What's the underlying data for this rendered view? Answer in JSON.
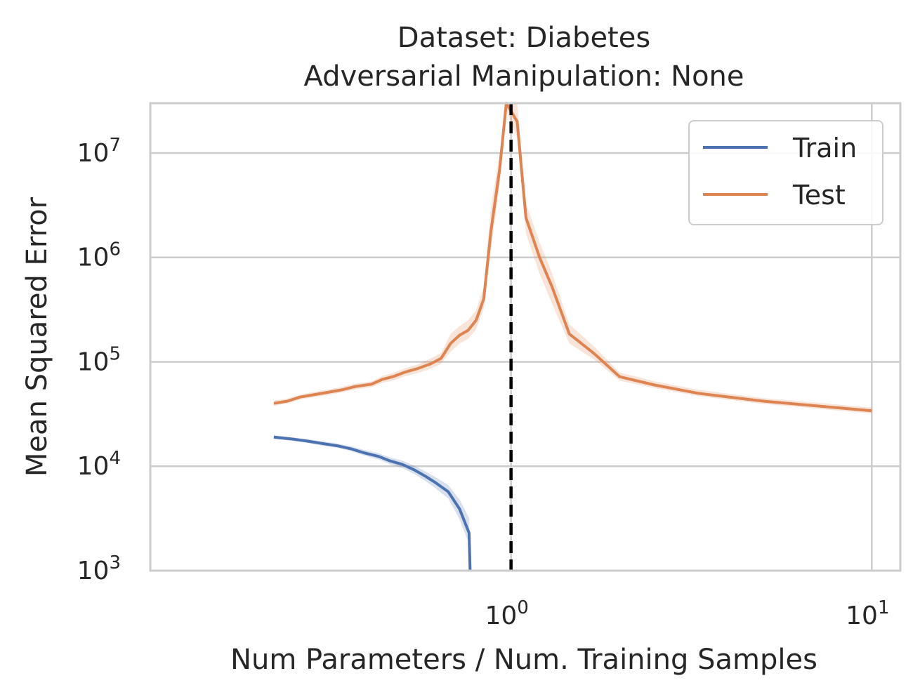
{
  "chart_data": {
    "type": "line",
    "title": "Dataset: Diabetes",
    "subtitle": "Adversarial Manipulation: None",
    "xlabel": "Num Parameters / Num. Training Samples",
    "ylabel": "Mean Squared Error",
    "xscale": "log",
    "yscale": "log",
    "xlim": [
      0.1,
      12
    ],
    "ylim": [
      1000,
      30000000
    ],
    "grid": true,
    "legend_position": "top-right",
    "x_ticks": [
      {
        "value": 1,
        "base": "10",
        "exp": "0"
      },
      {
        "value": 10,
        "base": "10",
        "exp": "1"
      }
    ],
    "y_ticks": [
      {
        "value": 1000,
        "base": "10",
        "exp": "3"
      },
      {
        "value": 10000,
        "base": "10",
        "exp": "4"
      },
      {
        "value": 100000,
        "base": "10",
        "exp": "5"
      },
      {
        "value": 1000000,
        "base": "10",
        "exp": "6"
      },
      {
        "value": 10000000,
        "base": "10",
        "exp": "7"
      }
    ],
    "vline": {
      "x": 1.0,
      "style": "dashed",
      "color": "#000000"
    },
    "series": [
      {
        "name": "Train",
        "color": "#4c72b0",
        "points": [
          [
            0.22,
            19000,
            18200,
            19800
          ],
          [
            0.245,
            18300,
            17600,
            19000
          ],
          [
            0.27,
            17500,
            16800,
            18300
          ],
          [
            0.3,
            16500,
            15800,
            17300
          ],
          [
            0.33,
            15700,
            15000,
            16500
          ],
          [
            0.36,
            14700,
            14000,
            15500
          ],
          [
            0.39,
            13500,
            12700,
            14400
          ],
          [
            0.43,
            12400,
            11600,
            13300
          ],
          [
            0.46,
            11300,
            10500,
            12200
          ],
          [
            0.5,
            10400,
            9600,
            11300
          ],
          [
            0.54,
            9200,
            8400,
            10100
          ],
          [
            0.58,
            8000,
            7200,
            8900
          ],
          [
            0.62,
            6900,
            6100,
            7800
          ],
          [
            0.67,
            5700,
            4900,
            6600
          ],
          [
            0.72,
            3900,
            3100,
            4800
          ],
          [
            0.765,
            2300,
            1800,
            3200
          ],
          [
            0.77,
            1000,
            1000,
            1100
          ]
        ]
      },
      {
        "name": "Test",
        "color": "#dd8452",
        "points": [
          [
            0.22,
            40000,
            38000,
            42500
          ],
          [
            0.24,
            42000,
            40000,
            44500
          ],
          [
            0.26,
            46000,
            43500,
            48500
          ],
          [
            0.28,
            48000,
            45500,
            51000
          ],
          [
            0.31,
            51000,
            48000,
            54000
          ],
          [
            0.34,
            54000,
            51000,
            57500
          ],
          [
            0.37,
            58000,
            54500,
            62000
          ],
          [
            0.41,
            61000,
            57000,
            65000
          ],
          [
            0.44,
            68000,
            63000,
            73000
          ],
          [
            0.47,
            72000,
            66000,
            78000
          ],
          [
            0.51,
            80000,
            73000,
            87000
          ],
          [
            0.55,
            86000,
            78000,
            94000
          ],
          [
            0.6,
            96000,
            86000,
            108000
          ],
          [
            0.64,
            108000,
            96000,
            122000
          ],
          [
            0.68,
            150000,
            125000,
            185000
          ],
          [
            0.72,
            180000,
            150000,
            220000
          ],
          [
            0.76,
            200000,
            165000,
            250000
          ],
          [
            0.8,
            250000,
            205000,
            310000
          ],
          [
            0.84,
            400000,
            320000,
            520000
          ],
          [
            0.88,
            1800000,
            1200000,
            3000000
          ],
          [
            0.93,
            7000000,
            5000000,
            10000000
          ],
          [
            0.97,
            30000000,
            25000000,
            30000000
          ],
          [
            1.04,
            20000000,
            14000000,
            30000000
          ],
          [
            1.1,
            2400000,
            1700000,
            3300000
          ],
          [
            1.2,
            1000000,
            700000,
            1400000
          ],
          [
            1.3,
            520000,
            360000,
            700000
          ],
          [
            1.45,
            185000,
            150000,
            230000
          ],
          [
            1.7,
            120000,
            105000,
            140000
          ],
          [
            2.0,
            72000,
            66000,
            79000
          ],
          [
            2.5,
            60000,
            56000,
            65000
          ],
          [
            3.3,
            50000,
            47000,
            54000
          ],
          [
            5.0,
            42000,
            39500,
            45000
          ],
          [
            10.0,
            34000,
            32000,
            36500
          ]
        ]
      }
    ]
  }
}
